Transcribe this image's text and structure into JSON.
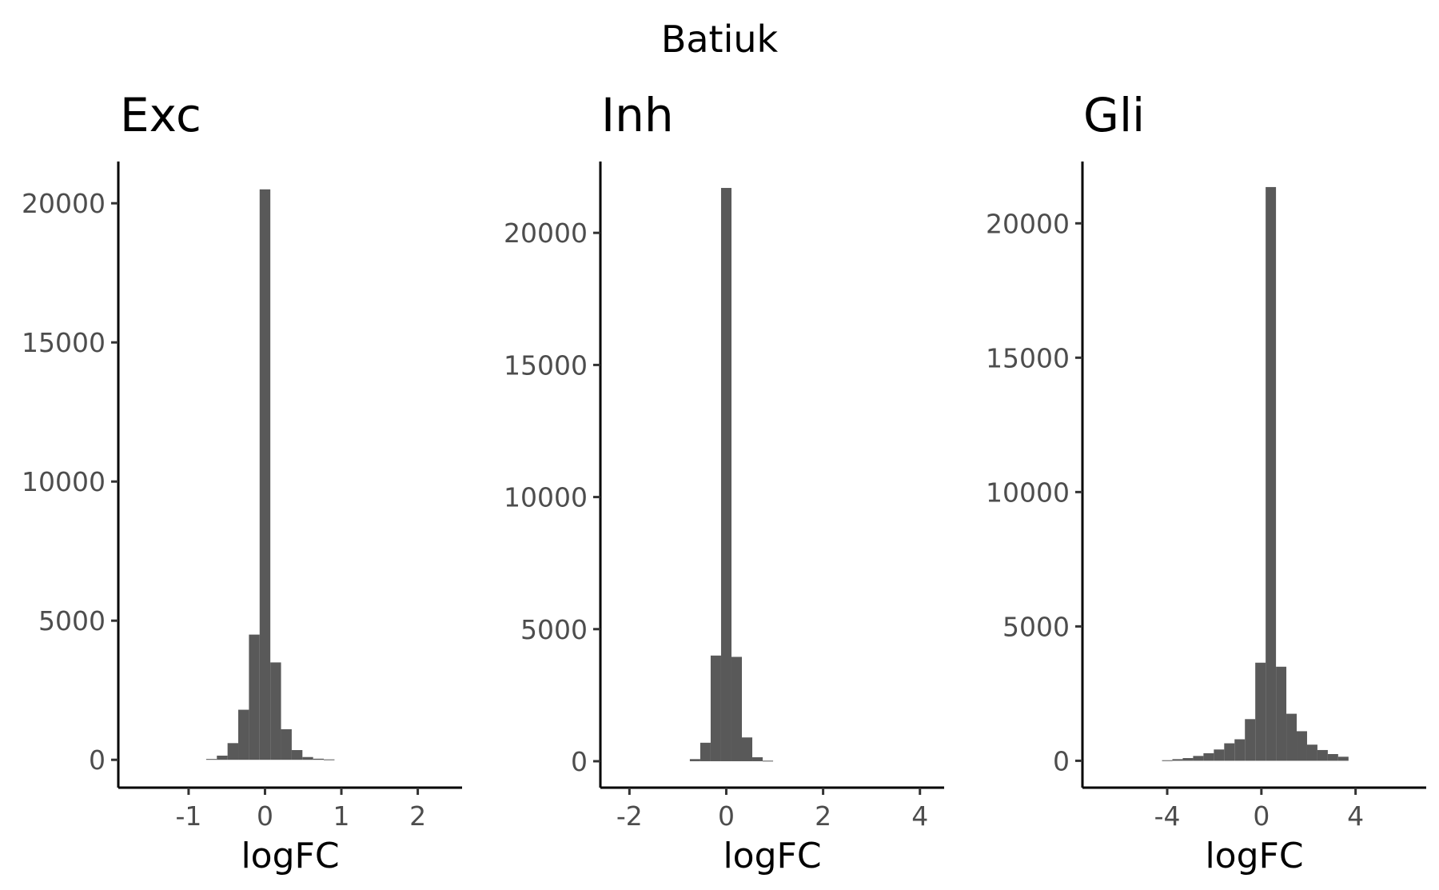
{
  "title": "Batiuk",
  "chart_data": [
    {
      "type": "bar",
      "title": "Exc",
      "xlabel": "logFC",
      "ylabel": "",
      "xlim": [
        -1.92,
        2.58
      ],
      "ylim": [
        -1000,
        21500
      ],
      "xticks": [
        -1,
        0,
        1,
        2
      ],
      "xtick_labels": [
        "-1",
        "0",
        "1",
        "2"
      ],
      "yticks": [
        0,
        5000,
        10000,
        15000,
        20000
      ],
      "ytick_labels": [
        "0",
        "5000",
        "10000",
        "15000",
        "20000"
      ],
      "binwidth": 0.14,
      "bin_centers": [
        -0.7,
        -0.56,
        -0.42,
        -0.28,
        -0.14,
        0.0,
        0.14,
        0.28,
        0.42,
        0.56,
        0.7,
        0.84
      ],
      "counts": [
        30,
        150,
        600,
        1800,
        4500,
        20500,
        3500,
        1100,
        350,
        100,
        40,
        15
      ]
    },
    {
      "type": "bar",
      "title": "Inh",
      "xlabel": "logFC",
      "ylabel": "",
      "xlim": [
        -2.6,
        4.5
      ],
      "ylim": [
        -1000,
        22700
      ],
      "xticks": [
        -2,
        0,
        2,
        4
      ],
      "xtick_labels": [
        "-2",
        "0",
        "2",
        "4"
      ],
      "yticks": [
        0,
        5000,
        10000,
        15000,
        20000
      ],
      "ytick_labels": [
        "0",
        "5000",
        "10000",
        "15000",
        "20000"
      ],
      "binwidth": 0.215,
      "bin_centers": [
        -0.645,
        -0.43,
        -0.215,
        0.0,
        0.215,
        0.43,
        0.645,
        0.86
      ],
      "counts": [
        80,
        700,
        4000,
        21700,
        3950,
        900,
        150,
        20
      ]
    },
    {
      "type": "bar",
      "title": "Gli",
      "xlabel": "logFC",
      "ylabel": "",
      "xlim": [
        -7.6,
        7.0
      ],
      "ylim": [
        -1000,
        22300
      ],
      "xticks": [
        -4,
        0,
        4
      ],
      "xtick_labels": [
        "-4",
        "0",
        "4"
      ],
      "yticks": [
        0,
        5000,
        10000,
        15000,
        20000
      ],
      "ytick_labels": [
        "0",
        "5000",
        "10000",
        "15000",
        "20000"
      ],
      "binwidth": 0.44,
      "bin_centers": [
        -4.0,
        -3.56,
        -3.12,
        -2.68,
        -2.24,
        -1.8,
        -1.36,
        -0.92,
        -0.48,
        -0.04,
        0.4,
        0.84,
        1.28,
        1.72,
        2.16,
        2.6,
        3.04,
        3.48
      ],
      "counts": [
        20,
        60,
        100,
        180,
        280,
        420,
        650,
        800,
        1550,
        3650,
        21350,
        3500,
        1750,
        1100,
        600,
        400,
        250,
        150
      ]
    }
  ]
}
